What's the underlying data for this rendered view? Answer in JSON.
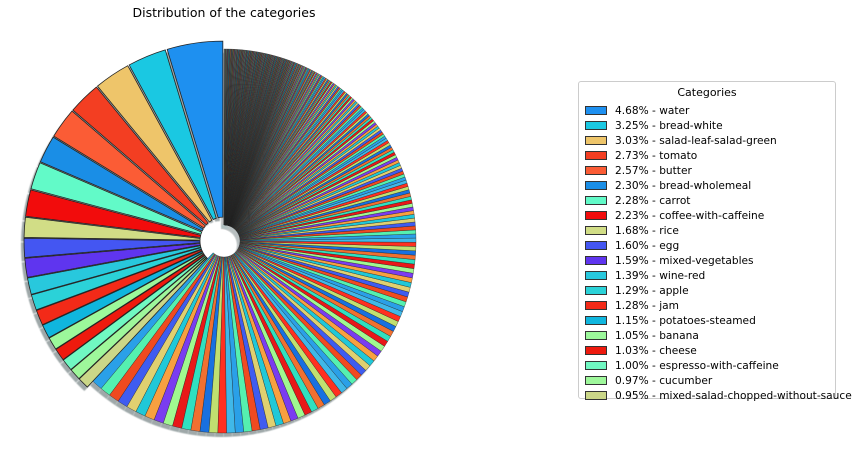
{
  "chart_data": {
    "type": "pie",
    "title": "Distribution of the categories",
    "legend_title": "Categories",
    "legend_placement": "right",
    "exploded": true,
    "donut": true,
    "slices": [
      {
        "label": "4.68% - water",
        "value": 4.68,
        "color": "#1e90f0"
      },
      {
        "label": "3.25% - bread-white",
        "value": 3.25,
        "color": "#1ac8e2"
      },
      {
        "label": "3.03% - salad-leaf-salad-green",
        "value": 3.03,
        "color": "#eec56a"
      },
      {
        "label": "2.73% - tomato",
        "value": 2.73,
        "color": "#f33e22"
      },
      {
        "label": "2.57% - butter",
        "value": 2.57,
        "color": "#fb5c35"
      },
      {
        "label": "2.30% - bread-wholemeal",
        "value": 2.3,
        "color": "#1a8ee6"
      },
      {
        "label": "2.28% - carrot",
        "value": 2.28,
        "color": "#62fac8"
      },
      {
        "label": "2.23% - coffee-with-caffeine",
        "value": 2.23,
        "color": "#f20c0c"
      },
      {
        "label": "1.68% - rice",
        "value": 1.68,
        "color": "#d1dd86"
      },
      {
        "label": "1.60% - egg",
        "value": 1.6,
        "color": "#4456f2"
      },
      {
        "label": "1.59% - mixed-vegetables",
        "value": 1.59,
        "color": "#5f35ef"
      },
      {
        "label": "1.39% - wine-red",
        "value": 1.39,
        "color": "#28c8dd"
      },
      {
        "label": "1.29% - apple",
        "value": 1.29,
        "color": "#2bd2d8"
      },
      {
        "label": "1.28% - jam",
        "value": 1.28,
        "color": "#f32a18"
      },
      {
        "label": "1.15% - potatoes-steamed",
        "value": 1.15,
        "color": "#10b6de"
      },
      {
        "label": "1.05% - banana",
        "value": 1.05,
        "color": "#9cf89b"
      },
      {
        "label": "1.03% - cheese",
        "value": 1.03,
        "color": "#ee1a0e"
      },
      {
        "label": "1.00% - espresso-with-caffeine",
        "value": 1.0,
        "color": "#70f8c2"
      },
      {
        "label": "0.97% - cucumber",
        "value": 0.97,
        "color": "#9ef79b"
      },
      {
        "label": "0.95% - mixed-salad-chopped-without-sauce",
        "value": 0.95,
        "color": "#cbd788"
      }
    ]
  }
}
